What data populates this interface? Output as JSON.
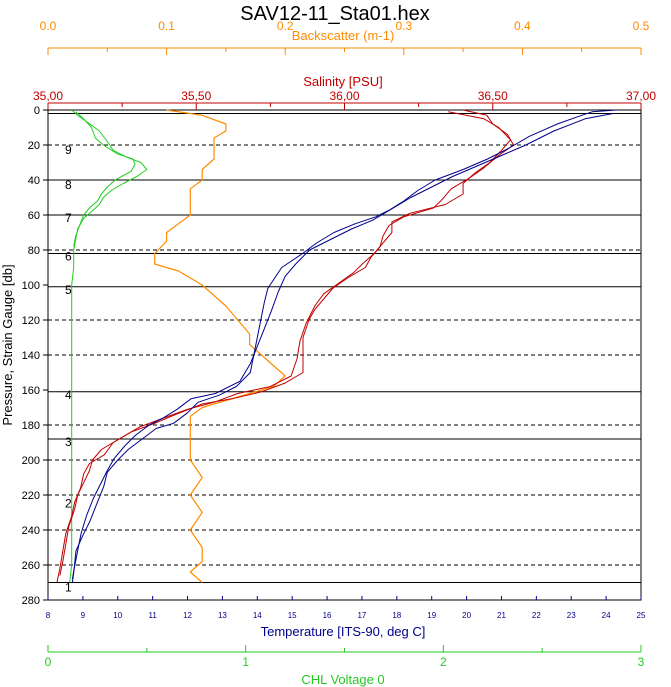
{
  "chart_data": {
    "type": "line",
    "title": "SAV12-11_Sta01.hex",
    "ylabel": "Pressure, Strain Gauge [db]",
    "ylim": [
      280,
      0
    ],
    "yticks": [
      0,
      20,
      40,
      60,
      80,
      100,
      120,
      140,
      160,
      180,
      200,
      220,
      240,
      260,
      280
    ],
    "axes": {
      "backscatter": {
        "label": "Backscatter (m-1)",
        "color": "#ff8c00",
        "range": [
          0,
          0.5
        ],
        "ticks": [
          "0.0",
          "0.1",
          "0.2",
          "0.3",
          "0.4",
          "0.5"
        ],
        "tick_values": [
          0,
          0.1,
          0.2,
          0.3,
          0.4,
          0.5
        ]
      },
      "salinity": {
        "label": "Salinity [PSU]",
        "color": "#c00000",
        "range": [
          35.0,
          37.0
        ],
        "ticks": [
          "35,00",
          "35,50",
          "36,00",
          "36,50",
          "37,00"
        ],
        "tick_values": [
          35.0,
          35.5,
          36.0,
          36.5,
          37.0
        ]
      },
      "temperature": {
        "label": "Temperature [ITS-90, deg C]",
        "color": "#00008b",
        "range": [
          8,
          25
        ],
        "ticks": [
          "8",
          "9",
          "10",
          "11",
          "12",
          "13",
          "14",
          "15",
          "16",
          "17",
          "18",
          "19",
          "20",
          "21",
          "22",
          "23",
          "24",
          "25"
        ],
        "tick_values": [
          8,
          9,
          10,
          11,
          12,
          13,
          14,
          15,
          16,
          17,
          18,
          19,
          20,
          21,
          22,
          23,
          24,
          25
        ]
      },
      "chl": {
        "label": "CHL Voltage 0",
        "color": "#22cc22",
        "range": [
          0,
          3
        ],
        "ticks": [
          "0",
          "1",
          "2",
          "3"
        ],
        "tick_values": [
          0,
          1,
          2,
          3
        ]
      }
    },
    "horizontal_lines": {
      "solid": [
        2,
        40,
        60,
        82,
        101,
        161,
        188,
        270
      ],
      "dashed": [
        20,
        80,
        120,
        140,
        180,
        200,
        220,
        240,
        260
      ]
    },
    "bin_labels": [
      {
        "text": "9",
        "depth": 25
      },
      {
        "text": "8",
        "depth": 45
      },
      {
        "text": "7",
        "depth": 64
      },
      {
        "text": "6",
        "depth": 86
      },
      {
        "text": "5",
        "depth": 105
      },
      {
        "text": "4",
        "depth": 165
      },
      {
        "text": "3",
        "depth": 192
      },
      {
        "text": "2",
        "depth": 227
      },
      {
        "text": "1",
        "depth": 275
      }
    ],
    "series": [
      {
        "axis": "temperature",
        "color": "#00008b",
        "points": [
          [
            24.3,
            0
          ],
          [
            23.6,
            1
          ],
          [
            23.3,
            3
          ],
          [
            22.6,
            8
          ],
          [
            21.8,
            15
          ],
          [
            21.2,
            22
          ],
          [
            20.6,
            28
          ],
          [
            19.9,
            34
          ],
          [
            19.1,
            40
          ],
          [
            18.6,
            46
          ],
          [
            18.2,
            52
          ],
          [
            17.8,
            57
          ],
          [
            17.4,
            61
          ],
          [
            16.8,
            65
          ],
          [
            16.2,
            70
          ],
          [
            15.7,
            76
          ],
          [
            15.3,
            82
          ],
          [
            15.0,
            86
          ],
          [
            14.7,
            90
          ],
          [
            14.5,
            96
          ],
          [
            14.3,
            102
          ],
          [
            14.2,
            110
          ],
          [
            14.1,
            120
          ],
          [
            14.0,
            130
          ],
          [
            13.9,
            140
          ],
          [
            13.8,
            150
          ],
          [
            13.4,
            158
          ],
          [
            12.9,
            163
          ],
          [
            12.3,
            167
          ],
          [
            12.0,
            173
          ],
          [
            11.6,
            179
          ],
          [
            11.1,
            182
          ],
          [
            10.7,
            188
          ],
          [
            10.3,
            194
          ],
          [
            10.0,
            200
          ],
          [
            9.7,
            207
          ],
          [
            9.6,
            215
          ],
          [
            9.4,
            225
          ],
          [
            9.2,
            235
          ],
          [
            9.0,
            243
          ],
          [
            8.8,
            252
          ],
          [
            8.75,
            262
          ],
          [
            8.7,
            270
          ]
        ]
      },
      {
        "axis": "temperature",
        "color": "#00008b",
        "points": [
          [
            24.2,
            2
          ],
          [
            23.4,
            5
          ],
          [
            22.5,
            12
          ],
          [
            21.7,
            20
          ],
          [
            21.0,
            26
          ],
          [
            20.3,
            32
          ],
          [
            19.6,
            38
          ],
          [
            19.0,
            44
          ],
          [
            18.4,
            50
          ],
          [
            17.9,
            56
          ],
          [
            17.3,
            63
          ],
          [
            16.7,
            68
          ],
          [
            16.1,
            74
          ],
          [
            15.5,
            80
          ],
          [
            15.1,
            88
          ],
          [
            14.8,
            95
          ],
          [
            14.6,
            104
          ],
          [
            14.4,
            115
          ],
          [
            14.2,
            125
          ],
          [
            14.0,
            135
          ],
          [
            13.8,
            145
          ],
          [
            13.5,
            155
          ],
          [
            12.8,
            162
          ],
          [
            12.1,
            165
          ],
          [
            11.7,
            171
          ],
          [
            11.3,
            176
          ],
          [
            10.9,
            180
          ],
          [
            10.5,
            186
          ],
          [
            10.2,
            192
          ],
          [
            9.9,
            199
          ],
          [
            9.7,
            206
          ],
          [
            9.5,
            214
          ],
          [
            9.3,
            222
          ],
          [
            9.1,
            232
          ],
          [
            8.95,
            242
          ],
          [
            8.85,
            252
          ],
          [
            8.75,
            262
          ],
          [
            8.7,
            268
          ]
        ]
      },
      {
        "axis": "salinity",
        "color": "#c00000",
        "points": [
          [
            36.4,
            0
          ],
          [
            36.48,
            3
          ],
          [
            36.5,
            8
          ],
          [
            36.55,
            14
          ],
          [
            36.57,
            20
          ],
          [
            36.52,
            26
          ],
          [
            36.47,
            33
          ],
          [
            36.42,
            39
          ],
          [
            36.36,
            45
          ],
          [
            36.33,
            51
          ],
          [
            36.3,
            56
          ],
          [
            36.2,
            61
          ],
          [
            36.15,
            66
          ],
          [
            36.13,
            72
          ],
          [
            36.12,
            78
          ],
          [
            36.09,
            84
          ],
          [
            36.07,
            90
          ],
          [
            36.01,
            96
          ],
          [
            35.96,
            102
          ],
          [
            35.93,
            108
          ],
          [
            35.9,
            114
          ],
          [
            35.88,
            120
          ],
          [
            35.86,
            130
          ],
          [
            35.86,
            140
          ],
          [
            35.86,
            150
          ],
          [
            35.8,
            156
          ],
          [
            35.72,
            161
          ],
          [
            35.62,
            165
          ],
          [
            35.52,
            168
          ],
          [
            35.43,
            174
          ],
          [
            35.36,
            179
          ],
          [
            35.28,
            184
          ],
          [
            35.22,
            190
          ],
          [
            35.19,
            197
          ],
          [
            35.14,
            202
          ],
          [
            35.12,
            208
          ],
          [
            35.11,
            216
          ],
          [
            35.09,
            224
          ],
          [
            35.08,
            232
          ],
          [
            35.06,
            242
          ],
          [
            35.05,
            252
          ],
          [
            35.04,
            262
          ],
          [
            35.03,
            270
          ]
        ]
      },
      {
        "axis": "salinity",
        "color": "#c00000",
        "points": [
          [
            36.35,
            1
          ],
          [
            36.47,
            5
          ],
          [
            36.52,
            10
          ],
          [
            36.56,
            17
          ],
          [
            36.53,
            23
          ],
          [
            36.49,
            30
          ],
          [
            36.44,
            36
          ],
          [
            36.4,
            42
          ],
          [
            36.4,
            48
          ],
          [
            36.34,
            54
          ],
          [
            36.22,
            59
          ],
          [
            36.16,
            64
          ],
          [
            36.16,
            70
          ],
          [
            36.13,
            76
          ],
          [
            36.1,
            82
          ],
          [
            36.06,
            88
          ],
          [
            36.03,
            93
          ],
          [
            35.98,
            99
          ],
          [
            35.93,
            105
          ],
          [
            35.9,
            112
          ],
          [
            35.87,
            122
          ],
          [
            35.85,
            132
          ],
          [
            35.84,
            142
          ],
          [
            35.82,
            152
          ],
          [
            35.75,
            158
          ],
          [
            35.64,
            162
          ],
          [
            35.56,
            167
          ],
          [
            35.47,
            171
          ],
          [
            35.39,
            176
          ],
          [
            35.31,
            181
          ],
          [
            35.25,
            187
          ],
          [
            35.18,
            194
          ],
          [
            35.15,
            200
          ],
          [
            35.14,
            206
          ],
          [
            35.12,
            213
          ],
          [
            35.1,
            220
          ],
          [
            35.09,
            228
          ],
          [
            35.07,
            238
          ],
          [
            35.06,
            248
          ],
          [
            35.05,
            258
          ],
          [
            35.04,
            266
          ]
        ]
      },
      {
        "axis": "backscatter",
        "color": "#ff8c00",
        "points": [
          [
            0.1,
            0
          ],
          [
            0.13,
            3
          ],
          [
            0.15,
            8
          ],
          [
            0.15,
            12
          ],
          [
            0.14,
            16
          ],
          [
            0.14,
            22
          ],
          [
            0.14,
            28
          ],
          [
            0.13,
            34
          ],
          [
            0.13,
            40
          ],
          [
            0.12,
            45
          ],
          [
            0.12,
            50
          ],
          [
            0.12,
            55
          ],
          [
            0.12,
            60
          ],
          [
            0.11,
            65
          ],
          [
            0.1,
            70
          ],
          [
            0.1,
            75
          ],
          [
            0.09,
            82
          ],
          [
            0.09,
            88
          ],
          [
            0.11,
            92
          ],
          [
            0.12,
            96
          ],
          [
            0.13,
            100
          ],
          [
            0.14,
            106
          ],
          [
            0.15,
            112
          ],
          [
            0.16,
            120
          ],
          [
            0.17,
            128
          ],
          [
            0.17,
            134
          ],
          [
            0.18,
            140
          ],
          [
            0.19,
            146
          ],
          [
            0.2,
            152
          ],
          [
            0.19,
            158
          ],
          [
            0.17,
            162
          ],
          [
            0.15,
            166
          ],
          [
            0.13,
            170
          ],
          [
            0.12,
            175
          ],
          [
            0.12,
            180
          ],
          [
            0.12,
            186
          ],
          [
            0.12,
            192
          ],
          [
            0.12,
            200
          ],
          [
            0.13,
            210
          ],
          [
            0.12,
            220
          ],
          [
            0.13,
            230
          ],
          [
            0.12,
            240
          ],
          [
            0.13,
            250
          ],
          [
            0.13,
            258
          ],
          [
            0.12,
            264
          ],
          [
            0.13,
            270
          ]
        ]
      },
      {
        "axis": "chl",
        "color": "#22cc22",
        "points": [
          [
            0.12,
            0
          ],
          [
            0.15,
            3
          ],
          [
            0.2,
            7
          ],
          [
            0.26,
            12
          ],
          [
            0.3,
            18
          ],
          [
            0.33,
            23
          ],
          [
            0.4,
            27
          ],
          [
            0.47,
            30
          ],
          [
            0.5,
            34
          ],
          [
            0.45,
            38
          ],
          [
            0.38,
            42
          ],
          [
            0.32,
            46
          ],
          [
            0.28,
            50
          ],
          [
            0.26,
            54
          ],
          [
            0.22,
            58
          ],
          [
            0.18,
            62
          ],
          [
            0.15,
            68
          ],
          [
            0.14,
            74
          ],
          [
            0.13,
            80
          ],
          [
            0.13,
            90
          ],
          [
            0.12,
            100
          ],
          [
            0.12,
            120
          ],
          [
            0.12,
            140
          ],
          [
            0.12,
            160
          ],
          [
            0.12,
            180
          ],
          [
            0.12,
            200
          ],
          [
            0.12,
            220
          ],
          [
            0.12,
            240
          ],
          [
            0.12,
            260
          ],
          [
            0.11,
            270
          ]
        ]
      },
      {
        "axis": "chl",
        "color": "#22cc22",
        "points": [
          [
            0.14,
            1
          ],
          [
            0.18,
            5
          ],
          [
            0.22,
            10
          ],
          [
            0.24,
            16
          ],
          [
            0.28,
            20
          ],
          [
            0.35,
            25
          ],
          [
            0.43,
            28
          ],
          [
            0.44,
            31
          ],
          [
            0.42,
            35
          ],
          [
            0.34,
            40
          ],
          [
            0.3,
            44
          ],
          [
            0.27,
            48
          ],
          [
            0.25,
            52
          ],
          [
            0.21,
            56
          ],
          [
            0.18,
            60
          ],
          [
            0.16,
            66
          ],
          [
            0.14,
            72
          ],
          [
            0.13,
            78
          ]
        ]
      }
    ]
  }
}
